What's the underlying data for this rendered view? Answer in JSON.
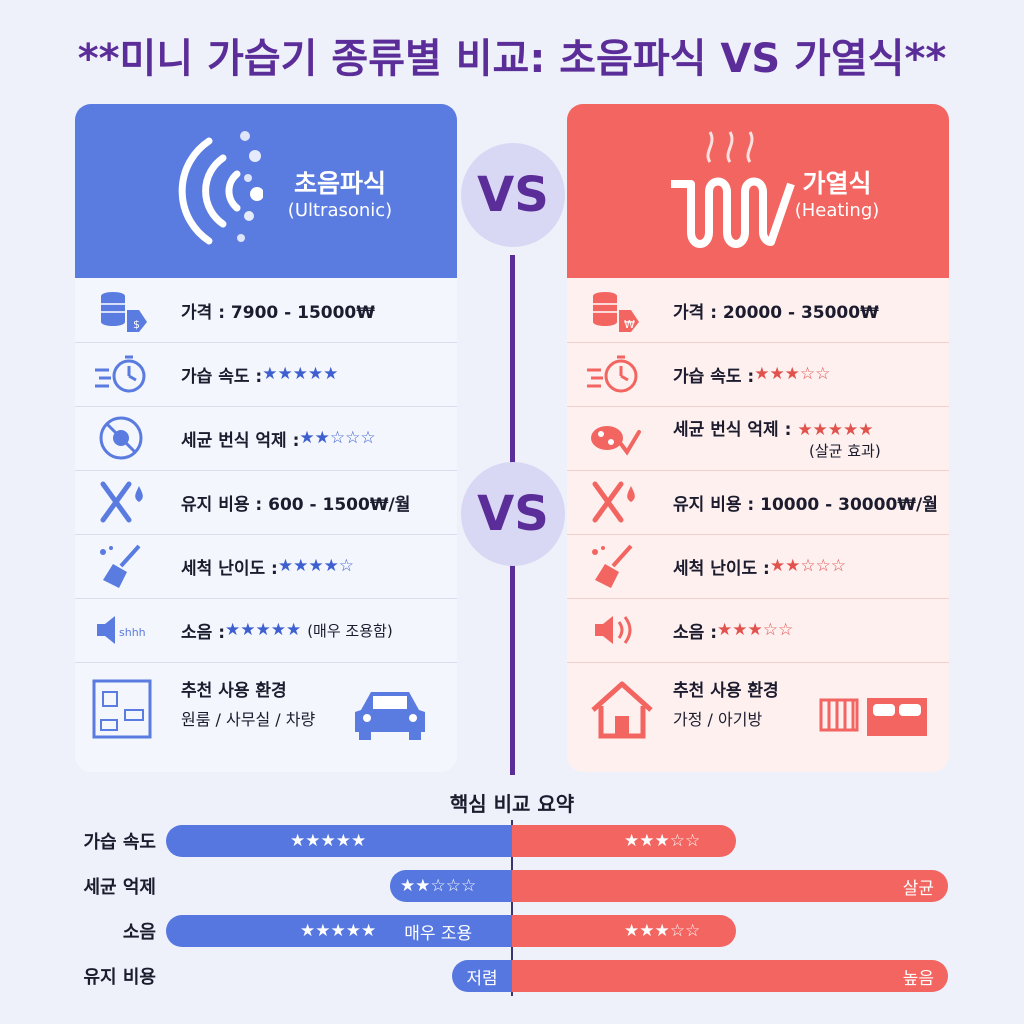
{
  "title": "**미니 가습기 종류별 비교: 초음파식 VS 가열식**",
  "vs_label": "VS",
  "colors": {
    "ultrasonic": "#5a7be0",
    "heating": "#f26560",
    "accent": "#5b2d98"
  },
  "ultrasonic": {
    "name": "초음파식",
    "sub": "(Ultrasonic)",
    "rows": [
      {
        "label": "가격 : 7900 - 15000₩",
        "stars": "",
        "note": ""
      },
      {
        "label": "가습 속도 : ",
        "stars": "★★★★★",
        "note": ""
      },
      {
        "label": "세균 번식 억제 : ",
        "stars": "★★☆☆☆",
        "note": ""
      },
      {
        "label": "유지 비용 : 600 - 1500₩/월",
        "stars": "",
        "note": ""
      },
      {
        "label": "세척 난이도 : ",
        "stars": "★★★★☆",
        "note": ""
      },
      {
        "label": "소음 : ",
        "stars": "★★★★★",
        "note": "(매우 조용함)"
      },
      {
        "label": "추천 사용 환경",
        "stars": "",
        "note": "원룸 / 사무실 / 차량"
      }
    ],
    "shhh": "shhh"
  },
  "heating": {
    "name": "가열식",
    "sub": "(Heating)",
    "rows": [
      {
        "label": "가격 : 20000 - 35000₩",
        "stars": "",
        "note": ""
      },
      {
        "label": "가습 속도 : ",
        "stars": "★★★☆☆",
        "note": ""
      },
      {
        "label": "세균 번식 억제 : ",
        "stars": "★★★★★",
        "note": "(살균 효과)"
      },
      {
        "label": "유지 비용 : 10000 - 30000₩/월",
        "stars": "",
        "note": ""
      },
      {
        "label": "세척 난이도 : ",
        "stars": "★★☆☆☆",
        "note": ""
      },
      {
        "label": "소음 : ",
        "stars": "★★★☆☆",
        "note": ""
      },
      {
        "label": "추천 사용 환경",
        "stars": "",
        "note": "가정 / 아기방"
      }
    ]
  },
  "summary": {
    "title": "핵심 비교 요약",
    "rows": [
      {
        "label": "가습 속도",
        "left": "★★★★★",
        "left_note": "",
        "right": "★★★☆☆",
        "right_note": ""
      },
      {
        "label": "세균 억제",
        "left": "★★☆☆☆",
        "left_note": "",
        "right": "",
        "right_note": "살균"
      },
      {
        "label": "소음",
        "left": "★★★★★",
        "left_note": "매우 조용",
        "right": "★★★☆☆",
        "right_note": ""
      },
      {
        "label": "유지 비용",
        "left": "",
        "left_note": "저렴",
        "right": "",
        "right_note": "높음"
      }
    ]
  }
}
